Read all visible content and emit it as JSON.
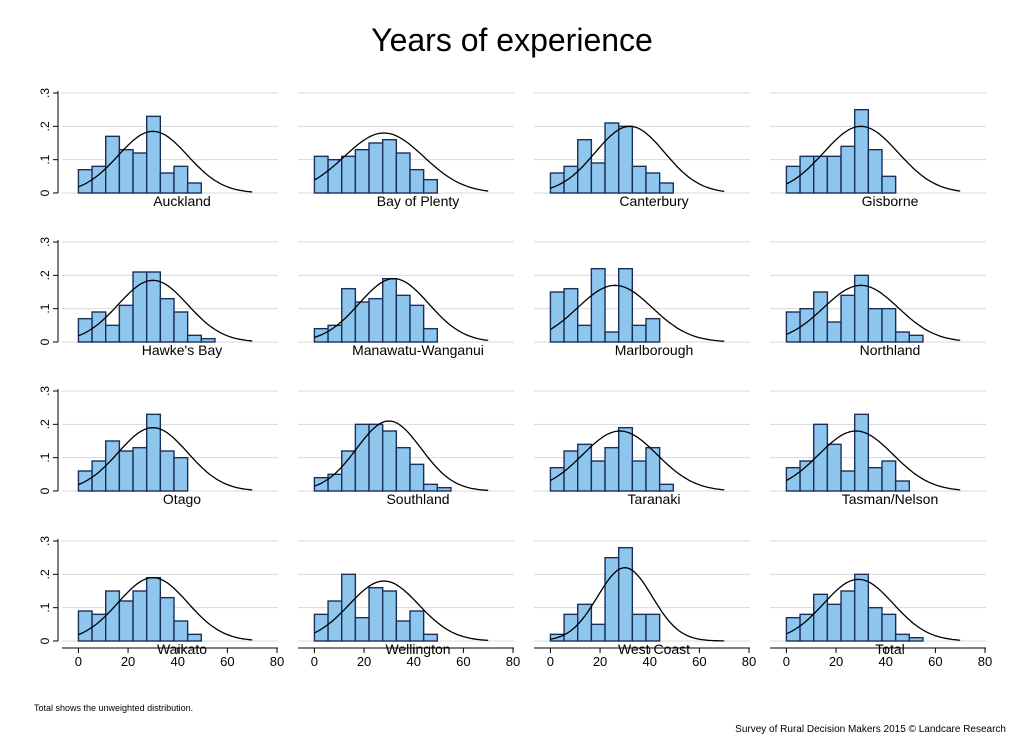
{
  "title": "Years of experience",
  "footnote": "Total shows the unweighted distribution.",
  "credit": "Survey of Rural Decision Makers 2015 © Landcare Research",
  "colors": {
    "bar_fill": "#8ec6ee",
    "bar_stroke": "#1a2f5a",
    "curve": "#000000",
    "grid": "#d8d8d8"
  },
  "chart_data": {
    "type": "bar",
    "layout": "4x4 panel grid of histograms with normal density overlay",
    "x_ticks": [
      "0",
      "20",
      "40",
      "60",
      "80"
    ],
    "y_ticks": [
      "0",
      ".1",
      ".2",
      ".3"
    ],
    "xlim": [
      -5,
      82
    ],
    "ylim": [
      0,
      0.3
    ],
    "bin_width": 5.5,
    "grid": true,
    "panels": [
      {
        "name": "Auckland",
        "bin_start": 0,
        "values": [
          0.07,
          0.08,
          0.17,
          0.13,
          0.12,
          0.23,
          0.06,
          0.08,
          0.03
        ],
        "curve": {
          "mean": 30,
          "sd": 14,
          "peak": 0.185
        }
      },
      {
        "name": "Bay of Plenty",
        "bin_start": 0,
        "values": [
          0.11,
          0.1,
          0.11,
          0.13,
          0.15,
          0.16,
          0.12,
          0.07,
          0.04
        ],
        "curve": {
          "mean": 28,
          "sd": 16,
          "peak": 0.18
        }
      },
      {
        "name": "Canterbury",
        "bin_start": 0,
        "values": [
          0.06,
          0.08,
          0.16,
          0.09,
          0.21,
          0.2,
          0.08,
          0.06,
          0.03
        ],
        "curve": {
          "mean": 32,
          "sd": 14,
          "peak": 0.2
        }
      },
      {
        "name": "Gisborne",
        "bin_start": 0,
        "values": [
          0.08,
          0.11,
          0.11,
          0.11,
          0.14,
          0.25,
          0.13,
          0.05
        ],
        "curve": {
          "mean": 30,
          "sd": 15,
          "peak": 0.2
        }
      },
      {
        "name": "Hawke's Bay",
        "bin_start": 0,
        "values": [
          0.07,
          0.09,
          0.05,
          0.11,
          0.21,
          0.21,
          0.13,
          0.09,
          0.02,
          0.01
        ],
        "curve": {
          "mean": 30,
          "sd": 14,
          "peak": 0.185
        }
      },
      {
        "name": "Manawatu-Wanganui",
        "bin_start": 0,
        "values": [
          0.04,
          0.05,
          0.16,
          0.12,
          0.13,
          0.19,
          0.14,
          0.11,
          0.04
        ],
        "curve": {
          "mean": 32,
          "sd": 14,
          "peak": 0.19
        }
      },
      {
        "name": "Marlborough",
        "bin_start": 0,
        "values": [
          0.15,
          0.16,
          0.05,
          0.22,
          0.03,
          0.22,
          0.05,
          0.07
        ],
        "curve": {
          "mean": 26,
          "sd": 15,
          "peak": 0.17
        }
      },
      {
        "name": "Northland",
        "bin_start": 0,
        "values": [
          0.09,
          0.1,
          0.15,
          0.06,
          0.14,
          0.2,
          0.1,
          0.1,
          0.03,
          0.02
        ],
        "curve": {
          "mean": 30,
          "sd": 15,
          "peak": 0.17
        }
      },
      {
        "name": "Otago",
        "bin_start": 0,
        "values": [
          0.06,
          0.09,
          0.15,
          0.12,
          0.13,
          0.23,
          0.12,
          0.1
        ],
        "curve": {
          "mean": 30,
          "sd": 14,
          "peak": 0.19
        }
      },
      {
        "name": "Southland",
        "bin_start": 0,
        "values": [
          0.04,
          0.05,
          0.12,
          0.2,
          0.2,
          0.18,
          0.13,
          0.08,
          0.02,
          0.01
        ],
        "curve": {
          "mean": 30,
          "sd": 13,
          "peak": 0.21
        }
      },
      {
        "name": "Taranaki",
        "bin_start": 0,
        "values": [
          0.07,
          0.12,
          0.14,
          0.09,
          0.13,
          0.19,
          0.09,
          0.13,
          0.02
        ],
        "curve": {
          "mean": 28,
          "sd": 15,
          "peak": 0.18
        }
      },
      {
        "name": "Tasman/Nelson",
        "bin_start": 0,
        "values": [
          0.07,
          0.09,
          0.2,
          0.14,
          0.06,
          0.23,
          0.07,
          0.09,
          0.03
        ],
        "curve": {
          "mean": 28,
          "sd": 15,
          "peak": 0.18
        }
      },
      {
        "name": "Waikato",
        "bin_start": 0,
        "values": [
          0.09,
          0.08,
          0.15,
          0.12,
          0.15,
          0.19,
          0.13,
          0.06,
          0.02
        ],
        "curve": {
          "mean": 30,
          "sd": 14,
          "peak": 0.19
        }
      },
      {
        "name": "Wellington",
        "bin_start": 0,
        "values": [
          0.08,
          0.12,
          0.2,
          0.07,
          0.16,
          0.15,
          0.06,
          0.09,
          0.02
        ],
        "curve": {
          "mean": 28,
          "sd": 14,
          "peak": 0.18
        }
      },
      {
        "name": "West Coast",
        "bin_start": 0,
        "values": [
          0.02,
          0.08,
          0.11,
          0.05,
          0.25,
          0.28,
          0.08,
          0.08
        ],
        "curve": {
          "mean": 30,
          "sd": 11,
          "peak": 0.22
        }
      },
      {
        "name": "Total",
        "bin_start": 0,
        "values": [
          0.07,
          0.08,
          0.14,
          0.11,
          0.15,
          0.2,
          0.1,
          0.08,
          0.02,
          0.01
        ],
        "curve": {
          "mean": 29,
          "sd": 14,
          "peak": 0.185
        }
      }
    ]
  }
}
